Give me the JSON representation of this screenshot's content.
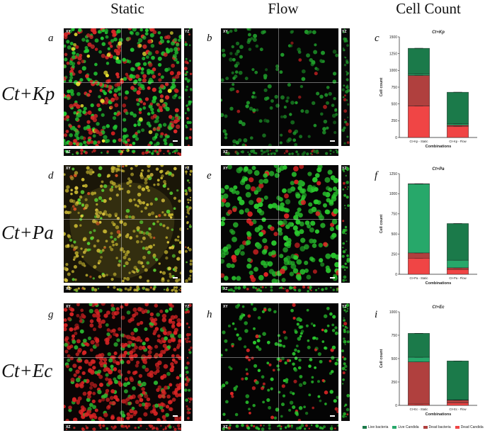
{
  "headers": {
    "static": "Static",
    "flow": "Flow",
    "count": "Cell Count"
  },
  "rows": [
    {
      "label": "Ct+Kp",
      "letters": [
        "a",
        "b",
        "c"
      ]
    },
    {
      "label": "Ct+Pa",
      "letters": [
        "d",
        "e",
        "f"
      ]
    },
    {
      "label": "Ct+Ec",
      "letters": [
        "g",
        "h",
        "i"
      ]
    }
  ],
  "micro_tags": {
    "xy": "XY",
    "yz": "YZ",
    "xz": "XZ"
  },
  "micrographs": [
    {
      "id": "kp-static",
      "style": "mixed-dense"
    },
    {
      "id": "kp-flow",
      "style": "sparse-green"
    },
    {
      "id": "pa-static",
      "style": "yellow-biofilm"
    },
    {
      "id": "pa-flow",
      "style": "dense-green-red"
    },
    {
      "id": "ec-static",
      "style": "dense-red"
    },
    {
      "id": "ec-flow",
      "style": "sparse-green-red"
    }
  ],
  "colors": {
    "live_bacteria": "#1b7a4a",
    "live_candida": "#27a86a",
    "dead_bacteria": "#b0403e",
    "dead_candida": "#f04545"
  },
  "legend": [
    "Live bacteria",
    "Live Candida",
    "Dead bacteria",
    "Dead Candida"
  ],
  "chart_data": [
    {
      "type": "bar",
      "stacked": true,
      "title": "Ct+Kp",
      "xlabel": "Combinations",
      "ylabel": "Cell count",
      "ylim": [
        0,
        1500
      ],
      "yticks": [
        0,
        250,
        500,
        750,
        1000,
        1250,
        1500
      ],
      "categories": [
        "Ct+Kp - Static",
        "Ct+Kp - Flow"
      ],
      "series": [
        {
          "name": "Dead Candida",
          "values": [
            470,
            165
          ]
        },
        {
          "name": "Dead bacteria",
          "values": [
            455,
            20
          ]
        },
        {
          "name": "Live Candida",
          "values": [
            20,
            20
          ]
        },
        {
          "name": "Live bacteria",
          "values": [
            385,
            470
          ]
        }
      ]
    },
    {
      "type": "bar",
      "stacked": true,
      "title": "Ct+Pa",
      "xlabel": "Combinations",
      "ylabel": "Cell count",
      "ylim": [
        0,
        1250
      ],
      "yticks": [
        0,
        250,
        500,
        750,
        1000,
        1250
      ],
      "categories": [
        "Ct+Pa - Static",
        "Ct+Pa - Flow"
      ],
      "series": [
        {
          "name": "Dead Candida",
          "values": [
            200,
            60
          ]
        },
        {
          "name": "Dead bacteria",
          "values": [
            65,
            20
          ]
        },
        {
          "name": "Live Candida",
          "values": [
            855,
            95
          ]
        },
        {
          "name": "Live bacteria",
          "values": [
            5,
            455
          ]
        }
      ]
    },
    {
      "type": "bar",
      "stacked": true,
      "title": "Ct+Ec",
      "xlabel": "Combinations",
      "ylabel": "Cell count",
      "ylim": [
        0,
        1000
      ],
      "yticks": [
        0,
        250,
        500,
        750,
        1000
      ],
      "categories": [
        "Ct+Ec - Static",
        "Ct+Ec - Flow"
      ],
      "series": [
        {
          "name": "Dead Candida",
          "values": [
            15,
            25
          ]
        },
        {
          "name": "Dead bacteria",
          "values": [
            450,
            30
          ]
        },
        {
          "name": "Live Candida",
          "values": [
            50,
            5
          ]
        },
        {
          "name": "Live bacteria",
          "values": [
            255,
            415
          ]
        }
      ]
    }
  ]
}
